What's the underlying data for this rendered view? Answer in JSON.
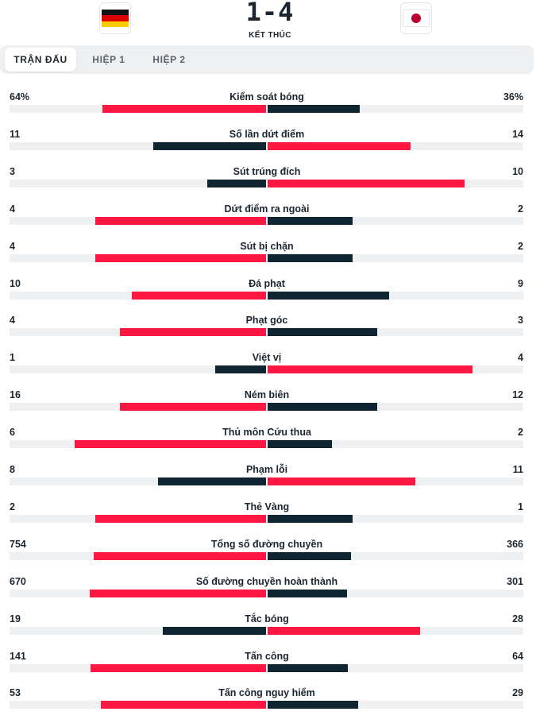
{
  "match": {
    "home_flag": "germany-flag",
    "away_flag": "japan-flag",
    "score": "1-4",
    "status": "KẾT THÚC"
  },
  "tabs": [
    {
      "label": "TRẬN ĐẤU",
      "active": true
    },
    {
      "label": "HIỆP 1",
      "active": false
    },
    {
      "label": "HIỆP 2",
      "active": false
    }
  ],
  "colors": {
    "leader": "#ff1744",
    "trailer": "#0f2532",
    "track": "#eef0f2"
  },
  "stats": [
    {
      "name": "Kiểm soát bóng",
      "home": "64%",
      "away": "36%",
      "home_val": 64,
      "away_val": 36
    },
    {
      "name": "Số lần dứt điểm",
      "home": "11",
      "away": "14",
      "home_val": 11,
      "away_val": 14
    },
    {
      "name": "Sút trúng đích",
      "home": "3",
      "away": "10",
      "home_val": 3,
      "away_val": 10
    },
    {
      "name": "Dứt điểm ra ngoài",
      "home": "4",
      "away": "2",
      "home_val": 4,
      "away_val": 2
    },
    {
      "name": "Sút bị chặn",
      "home": "4",
      "away": "2",
      "home_val": 4,
      "away_val": 2
    },
    {
      "name": "Đá phạt",
      "home": "10",
      "away": "9",
      "home_val": 10,
      "away_val": 9
    },
    {
      "name": "Phạt góc",
      "home": "4",
      "away": "3",
      "home_val": 4,
      "away_val": 3
    },
    {
      "name": "Việt vị",
      "home": "1",
      "away": "4",
      "home_val": 1,
      "away_val": 4
    },
    {
      "name": "Ném biên",
      "home": "16",
      "away": "12",
      "home_val": 16,
      "away_val": 12
    },
    {
      "name": "Thủ môn Cứu thua",
      "home": "6",
      "away": "2",
      "home_val": 6,
      "away_val": 2
    },
    {
      "name": "Phạm lỗi",
      "home": "8",
      "away": "11",
      "home_val": 8,
      "away_val": 11
    },
    {
      "name": "Thẻ Vàng",
      "home": "2",
      "away": "1",
      "home_val": 2,
      "away_val": 1
    },
    {
      "name": "Tổng số đường chuyền",
      "home": "754",
      "away": "366",
      "home_val": 754,
      "away_val": 366
    },
    {
      "name": "Số đường chuyền hoàn thành",
      "home": "670",
      "away": "301",
      "home_val": 670,
      "away_val": 301
    },
    {
      "name": "Tắc bóng",
      "home": "19",
      "away": "28",
      "home_val": 19,
      "away_val": 28
    },
    {
      "name": "Tấn công",
      "home": "141",
      "away": "64",
      "home_val": 141,
      "away_val": 64
    },
    {
      "name": "Tấn công nguy hiểm",
      "home": "53",
      "away": "29",
      "home_val": 53,
      "away_val": 29
    }
  ]
}
